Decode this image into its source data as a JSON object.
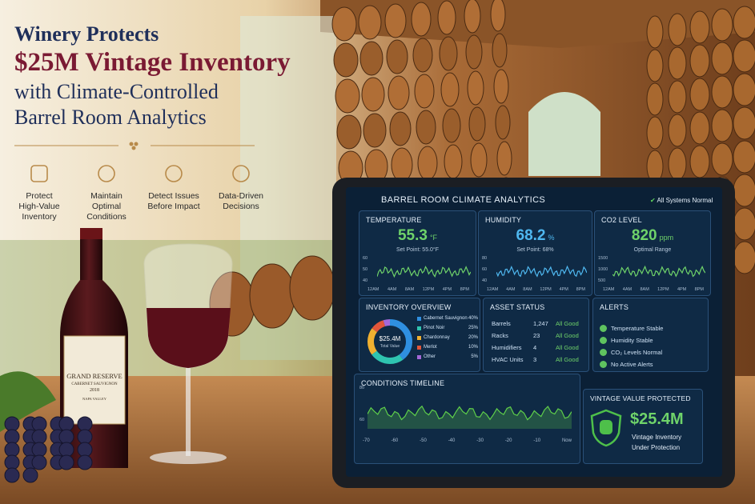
{
  "headline": {
    "lines": [
      "Winery Protects",
      "$25M Vintage Inventory",
      "with Climate-Controlled",
      "Barrel Room Analytics"
    ]
  },
  "features": [
    {
      "lines": [
        "Protect",
        "High-Value",
        "Inventory"
      ]
    },
    {
      "lines": [
        "Maintain",
        "Optimal",
        "Conditions"
      ]
    },
    {
      "lines": [
        "Detect Issues",
        "Before Impact"
      ]
    },
    {
      "lines": [
        "Data-Driven",
        "Decisions"
      ]
    }
  ],
  "bottle_label": {
    "title": "GRAND RESERVE",
    "varietal": "CABERNET SAUVIGNON",
    "year": "2018",
    "region": "NAPA VALLEY"
  },
  "dashboard": {
    "title": "BARREL ROOM CLIMATE ANALYTICS",
    "status": "All Systems Normal",
    "temperature": {
      "label": "TEMPERATURE",
      "value": "55.3",
      "unit": "°F",
      "note": "Set Point: 55.0°F",
      "y_labels": [
        "60",
        "50",
        "40"
      ],
      "x_labels": [
        "12AM",
        "4AM",
        "8AM",
        "12PM",
        "4PM",
        "8PM"
      ]
    },
    "humidity": {
      "label": "HUMIDITY",
      "value": "68.2",
      "unit": "%",
      "note": "Set Point: 68%",
      "y_labels": [
        "80",
        "60",
        "40"
      ],
      "x_labels": [
        "12AM",
        "4AM",
        "8AM",
        "12PM",
        "4PM",
        "8PM"
      ]
    },
    "co2": {
      "label": "CO2 LEVEL",
      "value": "820",
      "unit": "ppm",
      "note": "Optimal Range",
      "y_labels": [
        "1500",
        "1000",
        "500"
      ],
      "x_labels": [
        "12AM",
        "4AM",
        "8AM",
        "12PM",
        "4PM",
        "8PM"
      ]
    },
    "inventory": {
      "title": "INVENTORY OVERVIEW",
      "total": "$25.4M",
      "total_label": "Total Value",
      "items": [
        {
          "name": "Cabernet Sauvignon",
          "share": 40,
          "label": "40%",
          "color": "#2f8fe0"
        },
        {
          "name": "Pinot Noir",
          "share": 25,
          "label": "25%",
          "color": "#2fc4b0"
        },
        {
          "name": "Chardonnay",
          "share": 20,
          "label": "20%",
          "color": "#f0b030"
        },
        {
          "name": "Merlot",
          "share": 10,
          "label": "10%",
          "color": "#e2563a"
        },
        {
          "name": "Other",
          "share": 5,
          "label": "5%",
          "color": "#a468d8"
        }
      ]
    },
    "assets": {
      "title": "ASSET STATUS",
      "rows": [
        {
          "name": "Barrels",
          "count": "1,247",
          "status": "All Good"
        },
        {
          "name": "Racks",
          "count": "23",
          "status": "All Good"
        },
        {
          "name": "Humidifiers",
          "count": "4",
          "status": "All Good"
        },
        {
          "name": "HVAC Units",
          "count": "3",
          "status": "All Good"
        }
      ]
    },
    "alerts": {
      "title": "ALERTS",
      "items": [
        "Temperature Stable",
        "Humidity Stable",
        "CO₂ Levels Normal",
        "No Active Alerts"
      ]
    },
    "timeline": {
      "title": "CONDITIONS TIMELINE",
      "y_labels": [
        "80",
        "60"
      ],
      "x_labels": [
        "-70",
        "-60",
        "-50",
        "-40",
        "-30",
        "-20",
        "-10",
        "Now"
      ]
    },
    "protected": {
      "title": "VINTAGE VALUE PROTECTED",
      "value": "$25.4M",
      "lines": [
        "Vintage Inventory",
        "Under Protection"
      ]
    }
  }
}
